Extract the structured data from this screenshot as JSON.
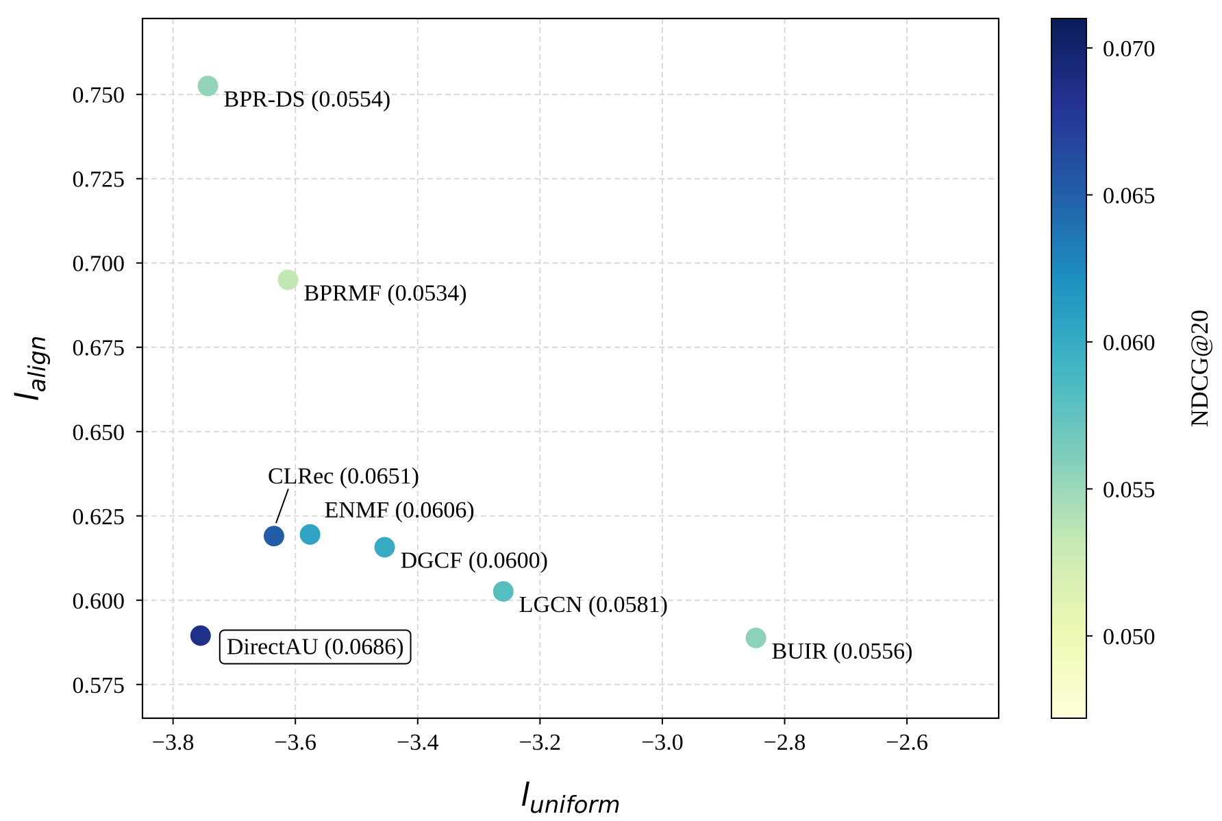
{
  "chart_data": {
    "type": "scatter",
    "title": "",
    "xlabel": {
      "base": "l",
      "sub": "uniform"
    },
    "ylabel": {
      "base": "l",
      "sub": "align"
    },
    "xlim": [
      -3.85,
      -2.45
    ],
    "ylim": [
      0.565,
      0.7725
    ],
    "xticks": [
      -3.8,
      -3.6,
      -3.4,
      -3.2,
      -3.0,
      -2.8,
      -2.6
    ],
    "xtick_labels": [
      "−3.8",
      "−3.6",
      "−3.4",
      "−3.2",
      "−3.0",
      "−2.8",
      "−2.6"
    ],
    "yticks": [
      0.575,
      0.6,
      0.625,
      0.65,
      0.675,
      0.7,
      0.725,
      0.75
    ],
    "ytick_labels": [
      "0.575",
      "0.600",
      "0.625",
      "0.650",
      "0.675",
      "0.700",
      "0.725",
      "0.750"
    ],
    "grid": true,
    "colormap": "YlGnBu",
    "colorbar": {
      "label": "NDCG@20",
      "range": [
        0.0472,
        0.071
      ],
      "ticks": [
        0.05,
        0.055,
        0.06,
        0.065,
        0.07
      ],
      "tick_labels": [
        "0.050",
        "0.055",
        "0.060",
        "0.065",
        "0.070"
      ]
    },
    "points": [
      {
        "name": "BPR-DS",
        "label": "BPR-DS (0.0554)",
        "x": -3.743,
        "y": 0.7525,
        "value": 0.0554,
        "label_pos": "below-right"
      },
      {
        "name": "BPRMF",
        "label": "BPRMF (0.0534)",
        "x": -3.612,
        "y": 0.695,
        "value": 0.0534,
        "label_pos": "below-right"
      },
      {
        "name": "CLRec",
        "label": "CLRec (0.0651)",
        "x": -3.635,
        "y": 0.619,
        "value": 0.0651,
        "label_pos": "above-leader"
      },
      {
        "name": "ENMF",
        "label": "ENMF (0.0606)",
        "x": -3.576,
        "y": 0.6195,
        "value": 0.0606,
        "label_pos": "above-right"
      },
      {
        "name": "DGCF",
        "label": "DGCF (0.0600)",
        "x": -3.454,
        "y": 0.6157,
        "value": 0.06,
        "label_pos": "below-right"
      },
      {
        "name": "LGCN",
        "label": "LGCN (0.0581)",
        "x": -3.26,
        "y": 0.6026,
        "value": 0.0581,
        "label_pos": "below-right"
      },
      {
        "name": "DirectAU",
        "label": "DirectAU (0.0686)",
        "x": -3.755,
        "y": 0.5895,
        "value": 0.0686,
        "label_pos": "boxed-right"
      },
      {
        "name": "BUIR",
        "label": "BUIR (0.0556)",
        "x": -2.847,
        "y": 0.5888,
        "value": 0.0556,
        "label_pos": "below-right"
      }
    ]
  }
}
